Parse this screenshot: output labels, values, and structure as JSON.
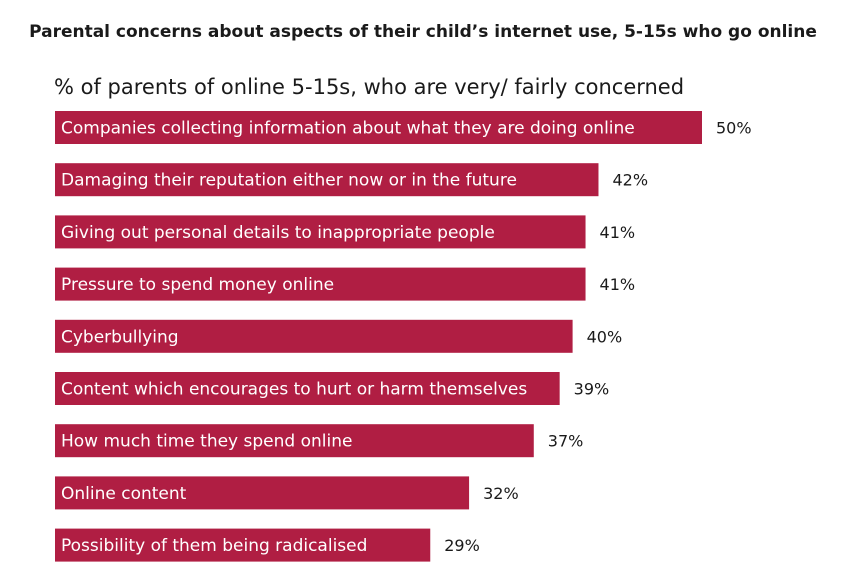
{
  "colors": {
    "bar": "#b01e43",
    "text": "#1a1a1a",
    "bar_text": "#ffffff"
  },
  "chart_data": {
    "type": "bar",
    "orientation": "horizontal",
    "title": "Parental concerns about aspects of their child’s internet use, 5-15s who go online",
    "subtitle": "% of parents of online 5-15s, who are very/ fairly concerned",
    "categories": [
      "Companies collecting information about what they are doing online",
      "Damaging their reputation either now or in the future",
      "Giving out personal details to inappropriate people",
      "Pressure to spend money online",
      "Cyberbullying",
      "Content which encourages to hurt or harm themselves",
      "How much time they spend online",
      "Online content",
      "Possibility of them being radicalised"
    ],
    "values": [
      50,
      42,
      41,
      41,
      40,
      39,
      37,
      32,
      29
    ],
    "value_labels": [
      "50%",
      "42%",
      "41%",
      "41%",
      "40%",
      "39%",
      "37%",
      "32%",
      "29%"
    ],
    "unit": "%",
    "xlim": [
      0,
      50
    ],
    "grid": false,
    "legend": "none"
  }
}
